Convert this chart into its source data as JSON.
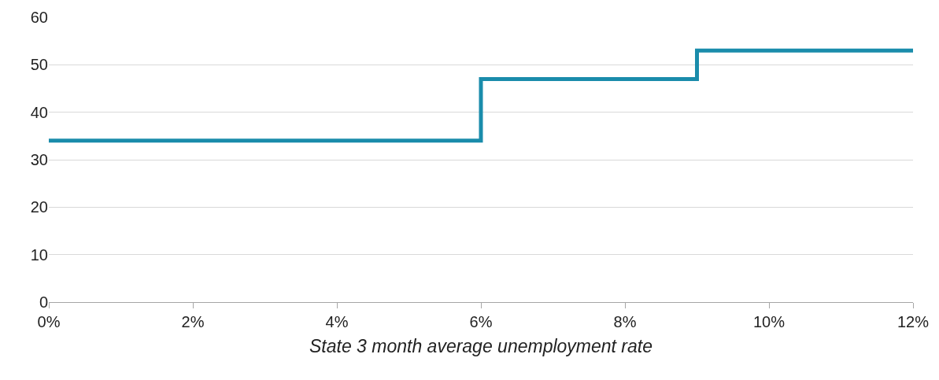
{
  "chart_data": {
    "type": "step",
    "xlabel": "State 3 month average unemployment rate",
    "x": [
      0,
      6,
      9,
      12
    ],
    "series": [
      {
        "color": "#1a8cab",
        "values": [
          34,
          47,
          53,
          53
        ]
      }
    ],
    "xlim": [
      0,
      12
    ],
    "xticks": [
      {
        "value": 0,
        "label": "0%"
      },
      {
        "value": 2,
        "label": "2%"
      },
      {
        "value": 4,
        "label": "4%"
      },
      {
        "value": 6,
        "label": "6%"
      },
      {
        "value": 8,
        "label": "8%"
      },
      {
        "value": 10,
        "label": "10%"
      },
      {
        "value": 12,
        "label": "12%"
      }
    ],
    "ylim": [
      0,
      60
    ],
    "yticks": [
      0,
      10,
      20,
      30,
      40,
      50,
      60
    ],
    "grid": "y",
    "marker": "none",
    "line_style": "solid"
  }
}
